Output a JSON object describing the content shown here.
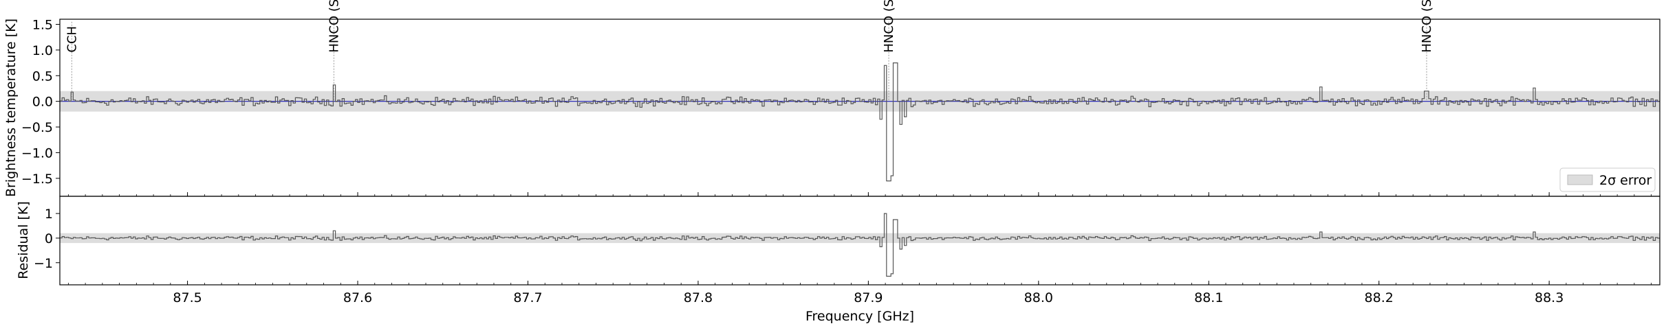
{
  "chart_data": {
    "type": "line",
    "xlabel": "Frequency [GHz]",
    "xlim": [
      87.425,
      88.365
    ],
    "x_ticks": [
      "87.5",
      "87.6",
      "87.7",
      "87.8",
      "87.9",
      "88.0",
      "88.1",
      "88.2",
      "88.3"
    ],
    "panels": [
      {
        "id": "spectrum",
        "ylabel": "Brightness temperature [K]",
        "ylim": [
          -1.85,
          1.6
        ],
        "y_ticks": [
          "1.5",
          "1.0",
          "0.5",
          "0.0",
          "−0.5",
          "−1.0",
          "−1.5"
        ],
        "error_band": [
          -0.2,
          0.2
        ],
        "model_level": 0.0,
        "legend": {
          "label": "2σ error",
          "loc": "lower right"
        },
        "line_annotations": [
          {
            "label": "CCH",
            "x": 87.432
          },
          {
            "label": "HNCO (SA)",
            "x": 87.586
          },
          {
            "label": "HNCO (SA)",
            "x": 87.912
          },
          {
            "label": "HNCO (SA)",
            "x": 88.228
          }
        ],
        "features": [
          {
            "x": 87.432,
            "amp": 0.18
          },
          {
            "x": 87.586,
            "amp": 0.32
          },
          {
            "x": 87.907,
            "amp": -0.35
          },
          {
            "x": 87.91,
            "amp": 0.7
          },
          {
            "x": 87.912,
            "amp": -1.55
          },
          {
            "x": 87.914,
            "amp": -1.45
          },
          {
            "x": 87.916,
            "amp": 0.75
          },
          {
            "x": 87.919,
            "amp": -0.45
          },
          {
            "x": 87.922,
            "amp": -0.3
          },
          {
            "x": 88.166,
            "amp": 0.28
          },
          {
            "x": 88.228,
            "amp": 0.2
          },
          {
            "x": 88.291,
            "amp": 0.26
          }
        ],
        "noise_amplitude": 0.09
      },
      {
        "id": "residual",
        "ylabel": "Residual [K]",
        "ylim": [
          -1.9,
          1.7
        ],
        "y_ticks": [
          "1",
          "0",
          "−1"
        ],
        "error_band": [
          -0.2,
          0.2
        ],
        "features": [
          {
            "x": 87.586,
            "amp": 0.3
          },
          {
            "x": 87.907,
            "amp": -0.35
          },
          {
            "x": 87.91,
            "amp": 1.0
          },
          {
            "x": 87.912,
            "amp": -1.55
          },
          {
            "x": 87.914,
            "amp": -1.45
          },
          {
            "x": 87.916,
            "amp": 0.75
          },
          {
            "x": 87.919,
            "amp": -0.45
          },
          {
            "x": 87.922,
            "amp": -0.3
          },
          {
            "x": 88.166,
            "amp": 0.25
          },
          {
            "x": 88.291,
            "amp": 0.25
          }
        ],
        "noise_amplitude": 0.09
      }
    ],
    "colors": {
      "data_line": "#555555",
      "model_line": "#3333bb",
      "error_band": "#dddddd",
      "annotation_line": "#999999"
    }
  }
}
